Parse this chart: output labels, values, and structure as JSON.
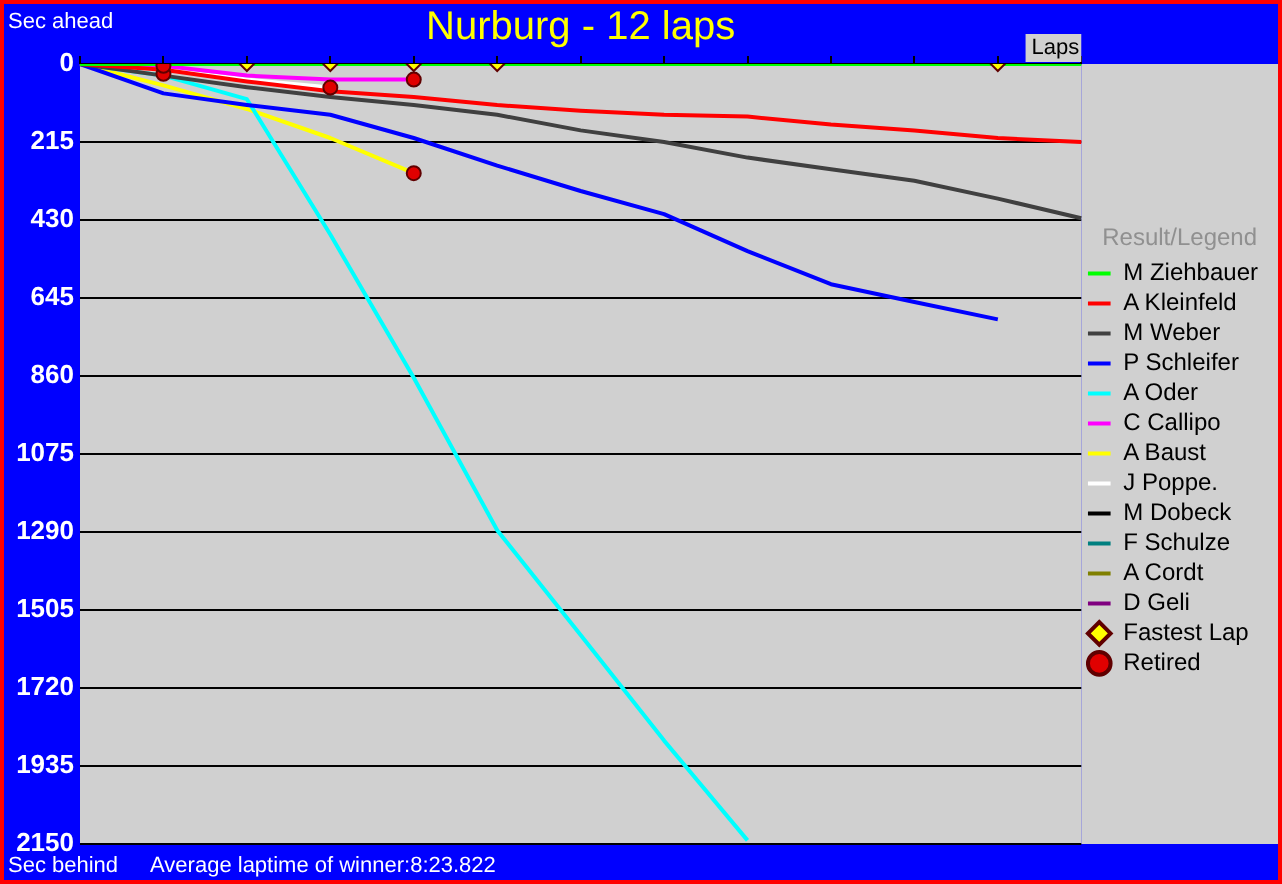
{
  "chart_data": {
    "type": "line",
    "title": "Nurburg - 12 laps",
    "xlabel": "Laps",
    "ylabel": "Sec ahead",
    "legend_title": "Result/Legend",
    "annotations": [
      "Sec behind",
      "Average laptime of winner:8:23.822"
    ],
    "categories": [
      null,
      null,
      null,
      null,
      null,
      null,
      null,
      null,
      null,
      null,
      null,
      null,
      null
    ],
    "ylim": [
      2150,
      0
    ],
    "yticks": [
      0,
      215,
      430,
      645,
      860,
      1075,
      1290,
      1505,
      1720,
      1935,
      2150
    ],
    "grid": "y",
    "legend": "right",
    "tick_labels": "y",
    "marker": "none",
    "line_style": "solid",
    "series": [
      {
        "name": "M Ziehbauer",
        "color": "#00ff00",
        "values": [
          0,
          0,
          0,
          0,
          0,
          0,
          0,
          0,
          0,
          0,
          0,
          0,
          0
        ]
      },
      {
        "name": "A Kleinfeld",
        "color": "#ff0000",
        "values": [
          0,
          16,
          48,
          75,
          91,
          113,
          129,
          140,
          145,
          167,
          183,
          204,
          215
        ]
      },
      {
        "name": "M Weber",
        "color": "#404040",
        "values": [
          0,
          32,
          64,
          91,
          113,
          140,
          183,
          215,
          258,
          290,
          322,
          371,
          425
        ]
      },
      {
        "name": "P Schleifer",
        "color": "#0000ff",
        "values": [
          0,
          81,
          113,
          140,
          204,
          280,
          350,
          414,
          516,
          607,
          656,
          704,
          null
        ]
      },
      {
        "name": "A Oder",
        "color": "#00ffff",
        "values": [
          0,
          32,
          97,
          470,
          865,
          1285,
          1574,
          1865,
          2140,
          null,
          null,
          null,
          null
        ]
      },
      {
        "name": "C Callipo",
        "color": "#ff00ff",
        "values": [
          0,
          5,
          32,
          43,
          43,
          null,
          null,
          null,
          null,
          null,
          null,
          null,
          null
        ]
      },
      {
        "name": "A Baust",
        "color": "#ffff00",
        "values": [
          0,
          59,
          124,
          204,
          301,
          null,
          null,
          null,
          null,
          null,
          null,
          null,
          null
        ]
      },
      {
        "name": "J Poppe.",
        "color": "#ffffff",
        "values": [
          0,
          16,
          43,
          65,
          null,
          null,
          null,
          null,
          null,
          null,
          null,
          null,
          null
        ]
      },
      {
        "name": "M Dobeck",
        "color": "#000000",
        "values": [
          null,
          null,
          null,
          null,
          null,
          null,
          null,
          null,
          null,
          null,
          null,
          null,
          null
        ]
      },
      {
        "name": "F Schulze",
        "color": "#008080",
        "values": [
          null,
          null,
          null,
          null,
          null,
          null,
          null,
          null,
          null,
          null,
          null,
          null,
          null
        ]
      },
      {
        "name": "A Cordt",
        "color": "#808000",
        "values": [
          null,
          null,
          null,
          null,
          null,
          null,
          null,
          null,
          null,
          null,
          null,
          null,
          null
        ]
      },
      {
        "name": "D Geli",
        "color": "#800080",
        "values": [
          null,
          null,
          null,
          null,
          null,
          null,
          null,
          null,
          null,
          null,
          null,
          null,
          null
        ]
      },
      {
        "name": "Fastest Lap",
        "type": "scatter",
        "marker": "diamond",
        "color": "#ffff00",
        "values": [
          null,
          null,
          0,
          0,
          0,
          0,
          null,
          null,
          null,
          null,
          null,
          0,
          null
        ]
      },
      {
        "name": "Retired",
        "type": "scatter",
        "marker": "circle",
        "color": "#e00000",
        "values": [
          null,
          5,
          null,
          65,
          43,
          null,
          null,
          null,
          null,
          null,
          null,
          null,
          null
        ]
      },
      {
        "type": "scatter",
        "marker": "circle",
        "color": "#e00000",
        "values": [
          null,
          27,
          null,
          null,
          301,
          null,
          null,
          null,
          null,
          null,
          null,
          null,
          null
        ]
      }
    ]
  }
}
